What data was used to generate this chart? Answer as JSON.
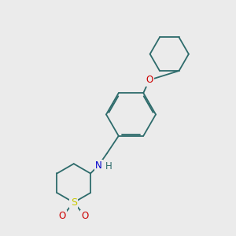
{
  "bg_color": "#ebebeb",
  "bond_color": "#2d6b6b",
  "bond_width": 1.3,
  "S_color": "#c8c800",
  "O_color": "#cc0000",
  "N_color": "#0000cc",
  "fig_width": 3.0,
  "fig_height": 3.0,
  "dpi": 100,
  "xlim": [
    0,
    10
  ],
  "ylim": [
    0,
    10
  ]
}
